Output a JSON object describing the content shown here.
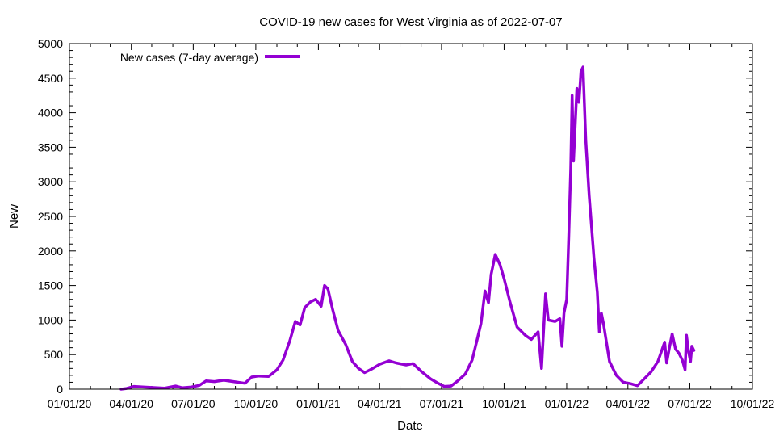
{
  "chart_data": {
    "type": "line",
    "title": "COVID-19 new cases for West Virginia as of 2022-07-07",
    "xlabel": "Date",
    "ylabel": "New",
    "x_ticks": [
      "01/01/20",
      "04/01/20",
      "07/01/20",
      "10/01/20",
      "01/01/21",
      "04/01/21",
      "07/01/21",
      "10/01/21",
      "01/01/22",
      "04/01/22",
      "07/01/22",
      "10/01/22"
    ],
    "xlim": [
      "2020-01-01",
      "2022-10-01"
    ],
    "y_ticks": [
      0,
      500,
      1000,
      1500,
      2000,
      2500,
      3000,
      3500,
      4000,
      4500,
      5000
    ],
    "ylim": [
      0,
      5000
    ],
    "grid": false,
    "legend_position": "top-left",
    "series": [
      {
        "name": "New cases (7-day average)",
        "color": "#9400d3",
        "points": [
          [
            "2020-03-17",
            0
          ],
          [
            "2020-03-25",
            10
          ],
          [
            "2020-04-05",
            40
          ],
          [
            "2020-04-20",
            30
          ],
          [
            "2020-05-01",
            25
          ],
          [
            "2020-05-20",
            15
          ],
          [
            "2020-06-05",
            45
          ],
          [
            "2020-06-15",
            20
          ],
          [
            "2020-06-28",
            30
          ],
          [
            "2020-07-10",
            55
          ],
          [
            "2020-07-20",
            120
          ],
          [
            "2020-08-01",
            110
          ],
          [
            "2020-08-15",
            130
          ],
          [
            "2020-09-01",
            105
          ],
          [
            "2020-09-15",
            85
          ],
          [
            "2020-09-25",
            175
          ],
          [
            "2020-10-05",
            190
          ],
          [
            "2020-10-20",
            185
          ],
          [
            "2020-11-01",
            280
          ],
          [
            "2020-11-10",
            420
          ],
          [
            "2020-11-20",
            700
          ],
          [
            "2020-11-28",
            980
          ],
          [
            "2020-12-05",
            930
          ],
          [
            "2020-12-12",
            1180
          ],
          [
            "2020-12-20",
            1260
          ],
          [
            "2020-12-28",
            1300
          ],
          [
            "2021-01-05",
            1200
          ],
          [
            "2021-01-10",
            1500
          ],
          [
            "2021-01-15",
            1450
          ],
          [
            "2021-01-22",
            1150
          ],
          [
            "2021-01-30",
            850
          ],
          [
            "2021-02-10",
            650
          ],
          [
            "2021-02-20",
            400
          ],
          [
            "2021-03-01",
            300
          ],
          [
            "2021-03-10",
            240
          ],
          [
            "2021-03-20",
            290
          ],
          [
            "2021-04-01",
            360
          ],
          [
            "2021-04-15",
            410
          ],
          [
            "2021-04-25",
            380
          ],
          [
            "2021-05-10",
            350
          ],
          [
            "2021-05-20",
            370
          ],
          [
            "2021-06-01",
            260
          ],
          [
            "2021-06-15",
            150
          ],
          [
            "2021-06-25",
            90
          ],
          [
            "2021-07-05",
            40
          ],
          [
            "2021-07-15",
            45
          ],
          [
            "2021-07-25",
            120
          ],
          [
            "2021-08-05",
            220
          ],
          [
            "2021-08-15",
            420
          ],
          [
            "2021-08-22",
            700
          ],
          [
            "2021-08-28",
            950
          ],
          [
            "2021-09-03",
            1420
          ],
          [
            "2021-09-08",
            1250
          ],
          [
            "2021-09-12",
            1660
          ],
          [
            "2021-09-18",
            1950
          ],
          [
            "2021-09-25",
            1800
          ],
          [
            "2021-10-01",
            1600
          ],
          [
            "2021-10-10",
            1250
          ],
          [
            "2021-10-20",
            900
          ],
          [
            "2021-11-01",
            780
          ],
          [
            "2021-11-10",
            720
          ],
          [
            "2021-11-20",
            830
          ],
          [
            "2021-11-25",
            300
          ],
          [
            "2021-12-01",
            1380
          ],
          [
            "2021-12-05",
            1000
          ],
          [
            "2021-12-15",
            980
          ],
          [
            "2021-12-22",
            1020
          ],
          [
            "2021-12-25",
            620
          ],
          [
            "2021-12-28",
            1100
          ],
          [
            "2022-01-01",
            1300
          ],
          [
            "2022-01-04",
            2200
          ],
          [
            "2022-01-07",
            3200
          ],
          [
            "2022-01-09",
            4250
          ],
          [
            "2022-01-11",
            3300
          ],
          [
            "2022-01-16",
            4350
          ],
          [
            "2022-01-19",
            4150
          ],
          [
            "2022-01-22",
            4600
          ],
          [
            "2022-01-25",
            4660
          ],
          [
            "2022-01-29",
            3600
          ],
          [
            "2022-02-03",
            2800
          ],
          [
            "2022-02-10",
            1900
          ],
          [
            "2022-02-15",
            1400
          ],
          [
            "2022-02-18",
            830
          ],
          [
            "2022-02-21",
            1100
          ],
          [
            "2022-02-24",
            950
          ],
          [
            "2022-03-05",
            400
          ],
          [
            "2022-03-15",
            200
          ],
          [
            "2022-03-25",
            100
          ],
          [
            "2022-04-05",
            80
          ],
          [
            "2022-04-15",
            50
          ],
          [
            "2022-04-25",
            150
          ],
          [
            "2022-05-05",
            250
          ],
          [
            "2022-05-15",
            400
          ],
          [
            "2022-05-25",
            680
          ],
          [
            "2022-05-28",
            380
          ],
          [
            "2022-06-01",
            600
          ],
          [
            "2022-06-05",
            800
          ],
          [
            "2022-06-10",
            580
          ],
          [
            "2022-06-15",
            520
          ],
          [
            "2022-06-20",
            420
          ],
          [
            "2022-06-24",
            280
          ],
          [
            "2022-06-26",
            780
          ],
          [
            "2022-06-29",
            550
          ],
          [
            "2022-07-02",
            400
          ],
          [
            "2022-07-04",
            620
          ],
          [
            "2022-07-07",
            560
          ]
        ]
      }
    ]
  }
}
